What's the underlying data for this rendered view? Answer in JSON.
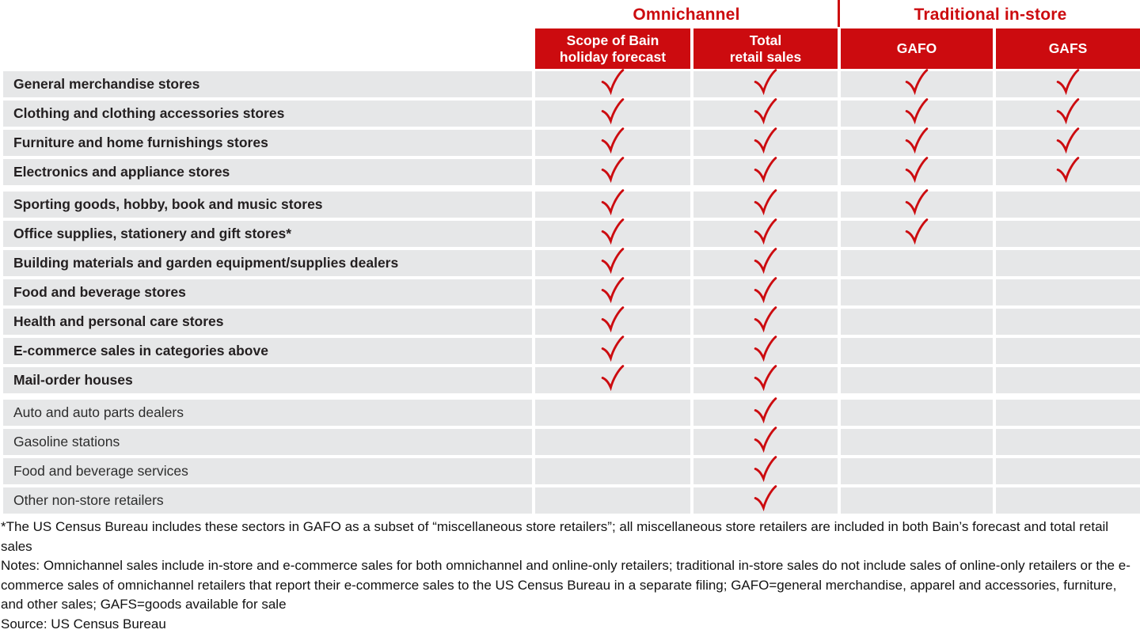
{
  "colors": {
    "accent_red": "#cc0b0f",
    "row_bg": "#e6e7e8",
    "label_color": "#231f20"
  },
  "chart_data": {
    "type": "table",
    "title": "",
    "column_groups": [
      {
        "label": "Omnichannel",
        "span": 2
      },
      {
        "label": "Traditional in-store",
        "span": 2
      }
    ],
    "columns": [
      {
        "lines": [
          "Scope of Bain",
          "holiday forecast"
        ]
      },
      {
        "lines": [
          "Total",
          "retail sales"
        ]
      },
      {
        "lines": [
          "GAFO"
        ]
      },
      {
        "lines": [
          "GAFS"
        ]
      }
    ],
    "check_symbol": "red checkmark",
    "rows": [
      {
        "label": "General merchandise stores",
        "emphasized": true,
        "group_end": false,
        "checks": [
          true,
          true,
          true,
          true
        ]
      },
      {
        "label": "Clothing and clothing accessories stores",
        "emphasized": true,
        "group_end": false,
        "checks": [
          true,
          true,
          true,
          true
        ]
      },
      {
        "label": "Furniture and home furnishings stores",
        "emphasized": true,
        "group_end": false,
        "checks": [
          true,
          true,
          true,
          true
        ]
      },
      {
        "label": "Electronics and appliance stores",
        "emphasized": true,
        "group_end": true,
        "checks": [
          true,
          true,
          true,
          true
        ]
      },
      {
        "label": "Sporting goods, hobby, book and music stores",
        "emphasized": true,
        "group_end": false,
        "checks": [
          true,
          true,
          true,
          false
        ]
      },
      {
        "label": "Office supplies, stationery and gift stores*",
        "emphasized": true,
        "group_end": false,
        "checks": [
          true,
          true,
          true,
          false
        ]
      },
      {
        "label": "Building materials and garden equipment/supplies dealers",
        "emphasized": true,
        "group_end": false,
        "checks": [
          true,
          true,
          false,
          false
        ]
      },
      {
        "label": "Food and beverage stores",
        "emphasized": true,
        "group_end": false,
        "checks": [
          true,
          true,
          false,
          false
        ]
      },
      {
        "label": "Health and personal care stores",
        "emphasized": true,
        "group_end": false,
        "checks": [
          true,
          true,
          false,
          false
        ]
      },
      {
        "label": "E-commerce sales in categories above",
        "emphasized": true,
        "group_end": false,
        "checks": [
          true,
          true,
          false,
          false
        ]
      },
      {
        "label": "Mail-order houses",
        "emphasized": true,
        "group_end": true,
        "checks": [
          true,
          true,
          false,
          false
        ]
      },
      {
        "label": "Auto and auto parts dealers",
        "emphasized": false,
        "group_end": false,
        "checks": [
          false,
          true,
          false,
          false
        ]
      },
      {
        "label": "Gasoline stations",
        "emphasized": false,
        "group_end": false,
        "checks": [
          false,
          true,
          false,
          false
        ]
      },
      {
        "label": "Food and beverage services",
        "emphasized": false,
        "group_end": false,
        "checks": [
          false,
          true,
          false,
          false
        ]
      },
      {
        "label": "Other non-store retailers",
        "emphasized": false,
        "group_end": false,
        "checks": [
          false,
          true,
          false,
          false
        ]
      }
    ],
    "legend_position": "none",
    "grid": false
  },
  "footnotes": {
    "asterisk": "*The US Census Bureau includes these sectors in GAFO as a subset of “miscellaneous store retailers”; all miscellaneous store retailers are included in both Bain’s forecast and total retail sales",
    "notes": "Notes: Omnichannel sales include in-store and e-commerce sales for both omnichannel and online-only retailers; traditional in-store sales do not include sales of online-only retailers or the e-commerce sales of omnichannel retailers that report their e-commerce sales to the US Census Bureau in a separate filing; GAFO=general merchandise, apparel and accessories, furniture, and other sales; GAFS=goods available for sale",
    "source": "Source: US Census Bureau"
  }
}
